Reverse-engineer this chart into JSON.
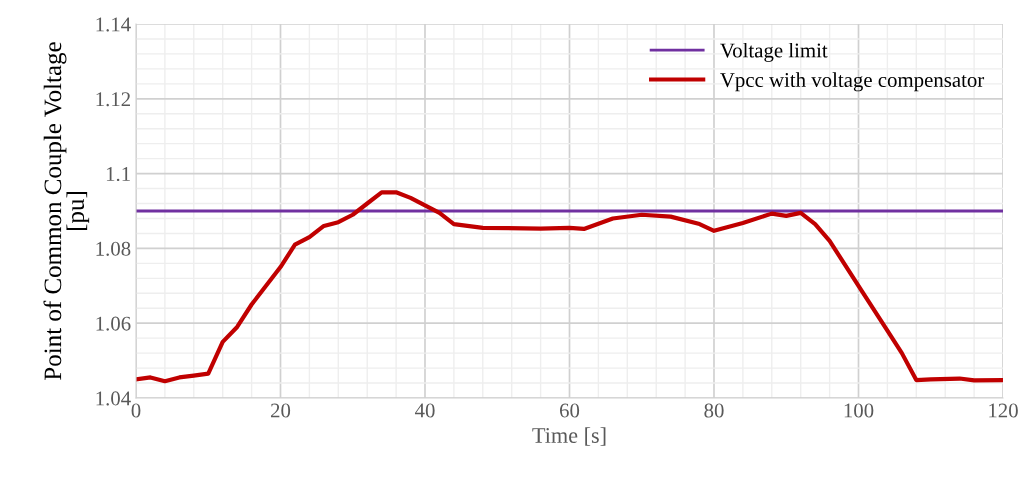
{
  "chart_data": {
    "type": "line",
    "xlabel": "Time [s]",
    "ylabel": "Point of Common Couple Voltage\n[pu]",
    "xlim": [
      0,
      120
    ],
    "xticks": [
      0,
      20,
      40,
      60,
      80,
      100,
      120
    ],
    "ylim": [
      1.04,
      1.14
    ],
    "yticks": [
      1.04,
      1.06,
      1.08,
      1.1,
      1.12,
      1.14
    ],
    "grid": true,
    "legend": "top right",
    "series": [
      {
        "name": "Voltage limit",
        "color": "#7030a0",
        "x": [
          0,
          120
        ],
        "values": [
          1.09,
          1.09
        ]
      },
      {
        "name": "Vpcc with voltage compensator",
        "color": "#c00000",
        "x": [
          0,
          2,
          4,
          6,
          8,
          10,
          12,
          14,
          16,
          20,
          22,
          24,
          26,
          28,
          30,
          32,
          34,
          36,
          38,
          40,
          42,
          44,
          48,
          56,
          60,
          62,
          66,
          70,
          74,
          78,
          80,
          84,
          88,
          90,
          92,
          94,
          96,
          100,
          104,
          106,
          108,
          110,
          114,
          116,
          120
        ],
        "values": [
          1.045,
          1.0455,
          1.0445,
          1.0455,
          1.046,
          1.0465,
          1.055,
          1.059,
          1.065,
          1.075,
          1.081,
          1.083,
          1.086,
          1.087,
          1.089,
          1.092,
          1.095,
          1.095,
          1.0935,
          1.0915,
          1.0895,
          1.0865,
          1.0855,
          1.0853,
          1.0855,
          1.0852,
          1.088,
          1.089,
          1.0885,
          1.0865,
          1.0847,
          1.0868,
          1.0893,
          1.0887,
          1.0895,
          1.0865,
          1.082,
          1.07,
          1.058,
          1.052,
          1.0448,
          1.045,
          1.0452,
          1.0447,
          1.0448
        ]
      }
    ]
  }
}
